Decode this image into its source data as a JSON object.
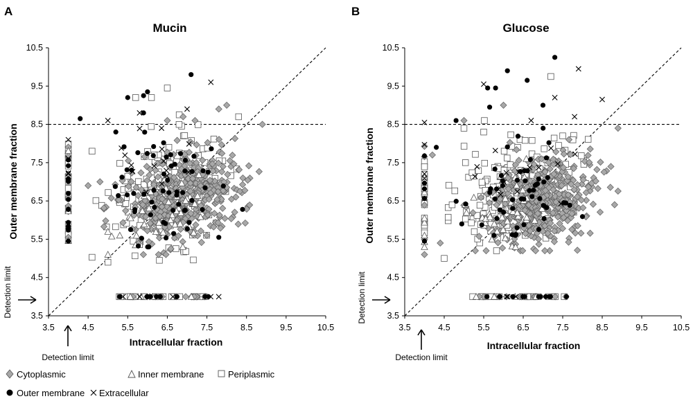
{
  "panels": [
    {
      "letter": "A",
      "detection_label_y": "Detection limit",
      "detection_label_x": "Detection limit"
    },
    {
      "letter": "B",
      "detection_label_y": "Detection limit",
      "detection_label_x": "Detection limit"
    }
  ],
  "legend": {
    "items": [
      {
        "label": "Cytoplasmic",
        "marker": "diamond",
        "color": "#a8a8a8"
      },
      {
        "label": "Inner membrane",
        "marker": "triangle",
        "color": "#ffffff"
      },
      {
        "label": "Periplasmic",
        "marker": "square",
        "color": "#ffffff"
      },
      {
        "label": "Outer membrane",
        "marker": "circle",
        "color": "#000000"
      },
      {
        "label": "Extracellular",
        "marker": "cross",
        "color": "#000000"
      }
    ]
  },
  "chart_data": [
    {
      "type": "scatter",
      "title": "Mucin",
      "xlabel": "Intracellular fraction",
      "ylabel": "Outer membrane fraction",
      "xlim": [
        3.5,
        10.5
      ],
      "ylim": [
        3.5,
        10.5
      ],
      "xticks": [
        "3.5",
        "4.5",
        "5.5",
        "6.5",
        "7.5",
        "8.5",
        "9.5",
        "10.5"
      ],
      "yticks": [
        "3.5",
        "4.5",
        "5.5",
        "6.5",
        "7.5",
        "8.5",
        "9.5",
        "10.5"
      ],
      "reference_lines": [
        {
          "kind": "horizontal",
          "y": 8.5,
          "style": "dashed"
        },
        {
          "kind": "diagonal",
          "from": [
            3.5,
            3.5
          ],
          "to": [
            10.5,
            10.5
          ],
          "style": "dashed"
        }
      ],
      "detection_limit": {
        "x": 4.0,
        "y": 4.0
      },
      "series": [
        {
          "name": "Cytoplasmic",
          "cloud": {
            "count": 420,
            "xmean": 6.9,
            "xsd": 0.75,
            "ymean": 6.6,
            "ysd": 0.7,
            "xmin": 4.9,
            "xmax": 9.0,
            "ymin": 5.1,
            "ymax": 8.6
          },
          "x_axis_count": 14,
          "y_axis_count": 8,
          "points": [
            [
              6.9,
              8.7
            ],
            [
              7.8,
              8.9
            ],
            [
              8.0,
              9.0
            ],
            [
              8.9,
              8.5
            ],
            [
              4.5,
              6.9
            ],
            [
              4.8,
              7.0
            ],
            [
              7.2,
              8.6
            ],
            [
              6.5,
              8.6
            ]
          ]
        },
        {
          "name": "Inner membrane",
          "cloud": {
            "count": 40,
            "xmean": 6.3,
            "xsd": 0.6,
            "ymean": 6.2,
            "ysd": 0.6,
            "xmin": 5.0,
            "xmax": 8.0,
            "ymin": 5.1,
            "ymax": 7.6
          },
          "x_axis_count": 5,
          "y_axis_count": 4,
          "points": [
            [
              5.0,
              5.1
            ],
            [
              5.3,
              5.6
            ]
          ]
        },
        {
          "name": "Periplasmic",
          "cloud": {
            "count": 190,
            "xmean": 6.5,
            "xsd": 0.75,
            "ymean": 6.8,
            "ysd": 0.75,
            "xmin": 4.6,
            "xmax": 8.7,
            "ymin": 4.9,
            "ymax": 8.7
          },
          "x_axis_count": 22,
          "y_axis_count": 20,
          "points": [
            [
              6.5,
              9.45
            ],
            [
              5.7,
              9.2
            ],
            [
              6.1,
              9.2
            ],
            [
              6.8,
              8.75
            ],
            [
              8.3,
              8.7
            ],
            [
              6.3,
              4.95
            ],
            [
              4.6,
              7.8
            ]
          ]
        },
        {
          "name": "Outer membrane",
          "cloud": {
            "count": 60,
            "xmean": 6.4,
            "xsd": 0.8,
            "ymean": 6.9,
            "ysd": 0.9,
            "xmin": 4.8,
            "xmax": 8.4,
            "ymin": 5.3,
            "ymax": 8.4
          },
          "x_axis_count": 10,
          "y_axis_count": 14,
          "points": [
            [
              7.1,
              9.8
            ],
            [
              5.5,
              9.2
            ],
            [
              5.9,
              9.25
            ],
            [
              6.0,
              9.35
            ],
            [
              4.3,
              8.65
            ],
            [
              5.9,
              8.8
            ],
            [
              5.2,
              8.3
            ],
            [
              7.8,
              5.55
            ]
          ]
        },
        {
          "name": "Extracellular",
          "cloud": {
            "count": 15,
            "xmean": 6.4,
            "xsd": 0.7,
            "ymean": 7.4,
            "ysd": 0.6,
            "xmin": 5.0,
            "xmax": 8.0,
            "ymin": 6.0,
            "ymax": 8.4
          },
          "x_axis_count": 4,
          "y_axis_count": 3,
          "points": [
            [
              7.6,
              9.6
            ],
            [
              7.0,
              8.9
            ],
            [
              5.8,
              8.8
            ],
            [
              5.0,
              8.6
            ],
            [
              7.8,
              4.0
            ],
            [
              4.0,
              8.1
            ]
          ]
        }
      ]
    },
    {
      "type": "scatter",
      "title": "Glucose",
      "xlabel": "Intracellular fraction",
      "ylabel": "Outer membrane fraction",
      "xlim": [
        3.5,
        10.5
      ],
      "ylim": [
        3.5,
        10.5
      ],
      "xticks": [
        "3.5",
        "4.5",
        "5.5",
        "6.5",
        "7.5",
        "8.5",
        "9.5",
        "10.5"
      ],
      "yticks": [
        "3.5",
        "4.5",
        "5.5",
        "6.5",
        "7.5",
        "8.5",
        "9.5",
        "10.5"
      ],
      "reference_lines": [
        {
          "kind": "horizontal",
          "y": 8.5,
          "style": "dashed"
        },
        {
          "kind": "diagonal",
          "from": [
            3.5,
            3.5
          ],
          "to": [
            10.5,
            10.5
          ],
          "style": "dashed"
        }
      ],
      "detection_limit": {
        "x": 4.0,
        "y": 4.0
      },
      "series": [
        {
          "name": "Cytoplasmic",
          "cloud": {
            "count": 450,
            "xmean": 7.0,
            "xsd": 0.7,
            "ymean": 6.5,
            "ysd": 0.65,
            "xmin": 5.0,
            "xmax": 8.9,
            "ymin": 5.2,
            "ymax": 8.5
          },
          "x_axis_count": 10,
          "y_axis_count": 6,
          "points": [
            [
              6.0,
              9.0
            ],
            [
              5.0,
              8.6
            ],
            [
              8.9,
              8.4
            ],
            [
              4.4,
              5.4
            ],
            [
              4.0,
              5.1
            ],
            [
              4.2,
              7.7
            ]
          ]
        },
        {
          "name": "Inner membrane",
          "cloud": {
            "count": 40,
            "xmean": 6.3,
            "xsd": 0.6,
            "ymean": 6.3,
            "ysd": 0.6,
            "xmin": 5.0,
            "xmax": 8.0,
            "ymin": 5.3,
            "ymax": 7.6
          },
          "x_axis_count": 4,
          "y_axis_count": 5,
          "points": [
            [
              4.0,
              5.3
            ],
            [
              4.0,
              5.6
            ]
          ]
        },
        {
          "name": "Periplasmic",
          "cloud": {
            "count": 180,
            "xmean": 6.3,
            "xsd": 0.75,
            "ymean": 6.8,
            "ysd": 0.75,
            "xmin": 4.6,
            "xmax": 8.5,
            "ymin": 4.95,
            "ymax": 8.6
          },
          "x_axis_count": 20,
          "y_axis_count": 18,
          "points": [
            [
              7.2,
              9.75
            ],
            [
              4.5,
              5.0
            ],
            [
              4.7,
              6.4
            ],
            [
              5.0,
              8.4
            ],
            [
              5.5,
              8.3
            ],
            [
              7.5,
              8.2
            ]
          ]
        },
        {
          "name": "Outer membrane",
          "cloud": {
            "count": 55,
            "xmean": 6.5,
            "xsd": 0.8,
            "ymean": 6.7,
            "ysd": 0.8,
            "xmin": 4.8,
            "xmax": 8.0,
            "ymin": 5.6,
            "ymax": 8.4
          },
          "x_axis_count": 12,
          "y_axis_count": 6,
          "points": [
            [
              7.3,
              10.25
            ],
            [
              6.1,
              9.9
            ],
            [
              6.6,
              9.65
            ],
            [
              5.6,
              9.45
            ],
            [
              5.8,
              9.45
            ],
            [
              5.65,
              8.95
            ],
            [
              7.0,
              9.0
            ],
            [
              4.8,
              8.6
            ],
            [
              4.3,
              7.9
            ]
          ]
        },
        {
          "name": "Extracellular",
          "cloud": {
            "count": 15,
            "xmean": 6.4,
            "xsd": 0.7,
            "ymean": 7.2,
            "ysd": 0.6,
            "xmin": 5.0,
            "xmax": 8.0,
            "ymin": 6.0,
            "ymax": 8.4
          },
          "x_axis_count": 4,
          "y_axis_count": 4,
          "points": [
            [
              7.9,
              9.95
            ],
            [
              5.5,
              9.55
            ],
            [
              7.3,
              9.2
            ],
            [
              8.5,
              9.15
            ],
            [
              4.0,
              8.55
            ],
            [
              6.7,
              8.6
            ],
            [
              7.8,
              8.7
            ]
          ]
        }
      ]
    }
  ]
}
